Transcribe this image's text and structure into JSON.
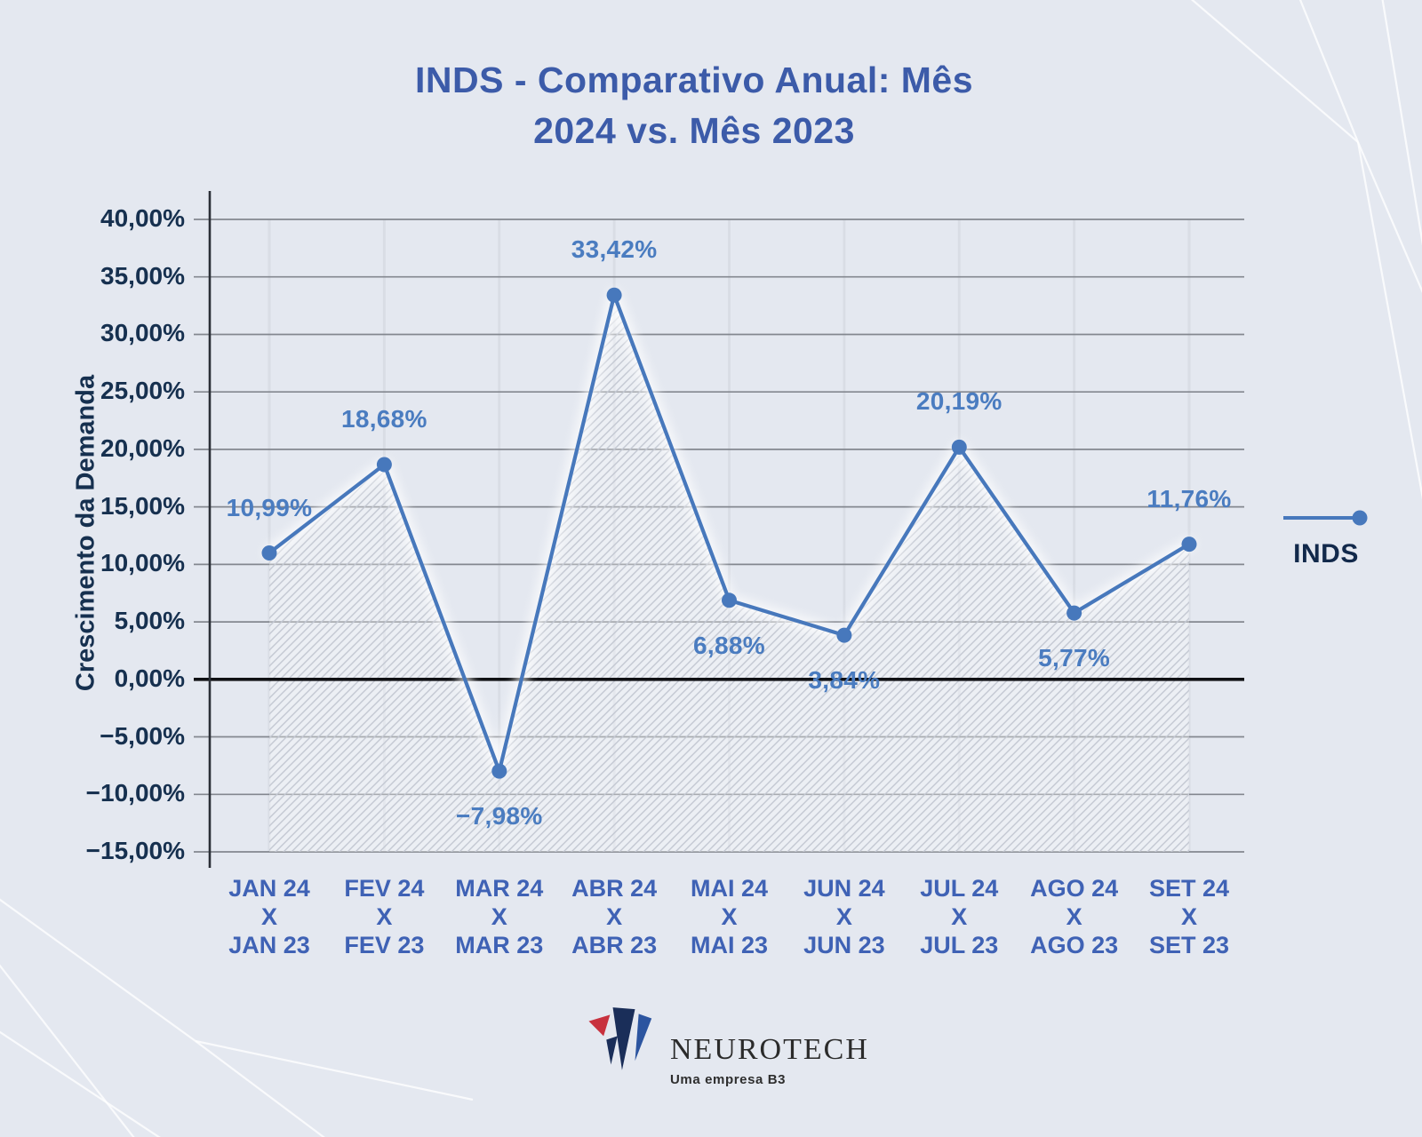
{
  "title": {
    "line1": "INDS - Comparativo Anual: Mês",
    "line2": "2024 vs. Mês 2023"
  },
  "legend": {
    "label": "INDS"
  },
  "y_axis_title": "Crescimento da Demanda",
  "footer_logo": {
    "brand": "NEUROTECH",
    "tagline": "Uma empresa B3",
    "mark_icon": "neurotech-angular-n-mark"
  },
  "colors": {
    "background": "#E4E8F0",
    "line": "#4778BC",
    "marker": "#4778BC",
    "data_label": "#4A7CC0",
    "title_text": "#3C5BA9",
    "y_tick_text": "#16304F",
    "x_tick_text": "#3F62B5",
    "gridline": "#83878F",
    "vertical_gridline": "#D9DDE5",
    "zero_line": "#101114",
    "axis_line": "#2B2F37",
    "hatch": "#C3C8D2",
    "glow": "#FFFFFF",
    "decor_lines": "#FFFFFF",
    "logo_red": "#C8313E",
    "logo_navy": "#1A2E59",
    "logo_blue": "#2C55A0"
  },
  "chart_data": {
    "type": "line",
    "title": "INDS - Comparativo Anual: Mês 2024 vs. Mês 2023",
    "xlabel": "",
    "ylabel": "Crescimento da Demanda",
    "ylim": [
      -15,
      40
    ],
    "grid_step": 5,
    "grid": "horizontal+vertical",
    "legend_position": "right",
    "area_fill": "hatched-diagonal",
    "categories": [
      [
        "JAN 24",
        "X",
        "JAN 23"
      ],
      [
        "FEV 24",
        "X",
        "FEV 23"
      ],
      [
        "MAR 24",
        "X",
        "MAR 23"
      ],
      [
        "ABR 24",
        "X",
        "ABR 23"
      ],
      [
        "MAI 24",
        "X",
        "MAI 23"
      ],
      [
        "JUN 24",
        "X",
        "JUN 23"
      ],
      [
        "JUL 24",
        "X",
        "JUL 23"
      ],
      [
        "AGO 24",
        "X",
        "AGO 23"
      ],
      [
        "SET 24",
        "X",
        "SET 23"
      ]
    ],
    "series": [
      {
        "name": "INDS",
        "values": [
          10.99,
          18.68,
          -7.98,
          33.42,
          6.88,
          3.84,
          20.19,
          5.77,
          11.76
        ],
        "value_labels": [
          "10,99%",
          "18,68%",
          "−7,98%",
          "33,42%",
          "6,88%",
          "3,84%",
          "20,19%",
          "5,77%",
          "11,76%"
        ],
        "label_positions": [
          "above",
          "above",
          "below",
          "above",
          "below",
          "below",
          "above",
          "below",
          "above"
        ]
      }
    ],
    "y_ticks": [
      {
        "v": 40,
        "label": "40,00%"
      },
      {
        "v": 35,
        "label": "35,00%"
      },
      {
        "v": 30,
        "label": "30,00%"
      },
      {
        "v": 25,
        "label": "25,00%"
      },
      {
        "v": 20,
        "label": "20,00%"
      },
      {
        "v": 15,
        "label": "15,00%"
      },
      {
        "v": 10,
        "label": "10,00%"
      },
      {
        "v": 5,
        "label": "5,00%"
      },
      {
        "v": 0,
        "label": "0,00%"
      },
      {
        "v": -5,
        "label": "−5,00%"
      },
      {
        "v": -10,
        "label": "−10,00%"
      },
      {
        "v": -15,
        "label": "−15,00%"
      }
    ]
  }
}
